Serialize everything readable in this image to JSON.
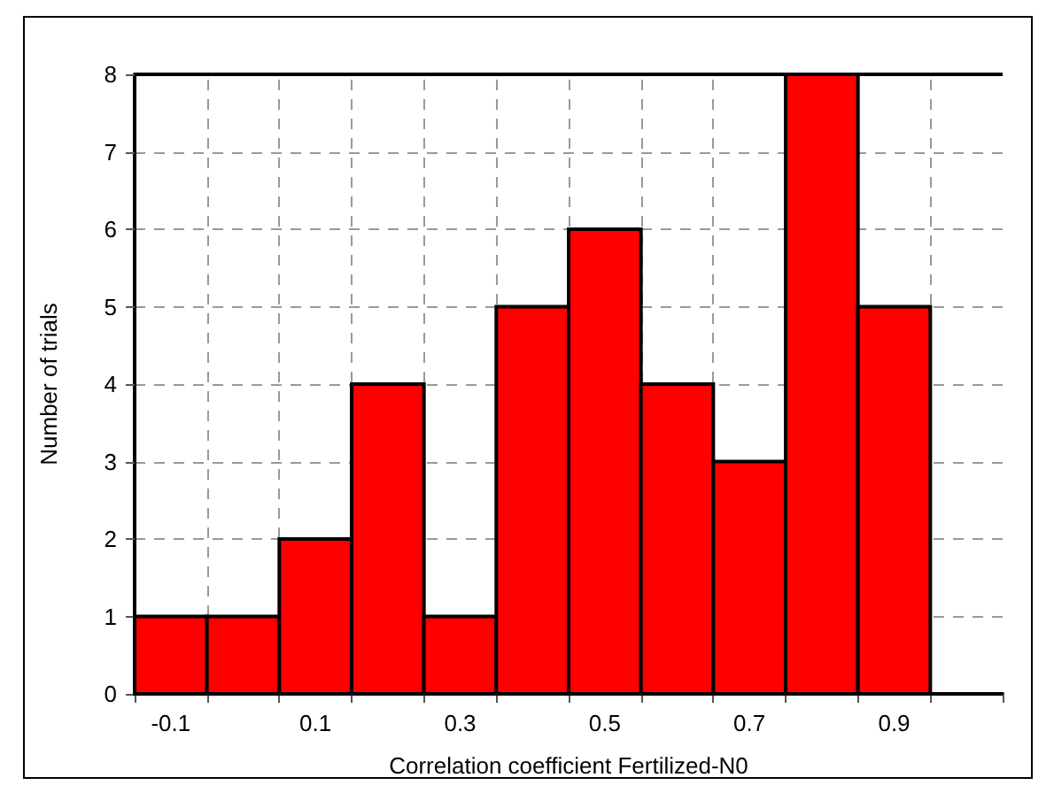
{
  "chart_data": {
    "type": "histogram",
    "xlabel": "Correlation coefficient Fertilized-N0",
    "ylabel": "Number of trials",
    "bins": [
      -0.15,
      -0.05,
      0.05,
      0.15,
      0.25,
      0.35,
      0.45,
      0.55,
      0.65,
      0.75,
      0.85,
      0.95
    ],
    "values": [
      1,
      1,
      2,
      4,
      1,
      5,
      6,
      4,
      3,
      8,
      5
    ],
    "color": "#ff0000",
    "xlim": [
      -0.15,
      1.05
    ],
    "xticks": [
      {
        "value": -0.15,
        "label": null
      },
      {
        "value": -0.1,
        "label": "-0.1"
      },
      {
        "value": -0.05,
        "label": null
      },
      {
        "value": 0.05,
        "label": null
      },
      {
        "value": 0.1,
        "label": "0.1"
      },
      {
        "value": 0.15,
        "label": null
      },
      {
        "value": 0.25,
        "label": null
      },
      {
        "value": 0.3,
        "label": "0.3"
      },
      {
        "value": 0.35,
        "label": null
      },
      {
        "value": 0.45,
        "label": null
      },
      {
        "value": 0.5,
        "label": "0.5"
      },
      {
        "value": 0.55,
        "label": null
      },
      {
        "value": 0.65,
        "label": null
      },
      {
        "value": 0.7,
        "label": "0.7"
      },
      {
        "value": 0.75,
        "label": null
      },
      {
        "value": 0.85,
        "label": null
      },
      {
        "value": 0.9,
        "label": "0.9"
      },
      {
        "value": 0.95,
        "label": null
      },
      {
        "value": 1.05,
        "label": null
      }
    ],
    "ylim": [
      0,
      8
    ],
    "yticks": [
      0,
      1,
      2,
      3,
      4,
      5,
      6,
      7,
      8
    ],
    "grid": true
  }
}
